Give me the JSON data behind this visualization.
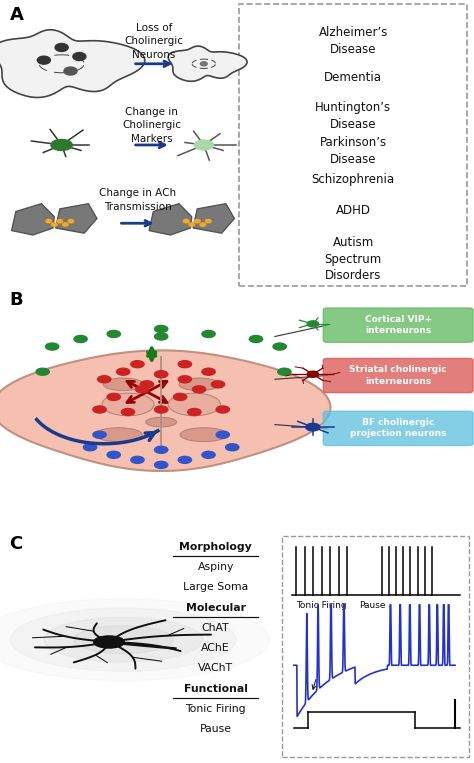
{
  "title_A": "A",
  "title_B": "B",
  "title_C": "C",
  "bg_color": "#ffffff",
  "diseases": [
    "Alzheimer’s\nDisease",
    "Dementia",
    "Huntington’s\nDisease",
    "Parkinson’s\nDisease",
    "Schizophrenia",
    "ADHD",
    "Autism\nSpectrum\nDisorders"
  ],
  "panel_A_labels": [
    "Loss of\nCholinergic\nNeurons",
    "Change in\nCholinergic\nMarkers",
    "Change in ACh\nTransmission"
  ],
  "legend_labels": [
    "Cortical VIP+\ninterneurons",
    "Striatal cholinergic\ninterneurons",
    "BF cholinergic\nprojection neurons"
  ],
  "legend_colors": [
    "#5cb85c",
    "#d9534f",
    "#5bc0de"
  ],
  "firing_label1": "Tonic Firing",
  "firing_label2": "Pause",
  "morph_lines": [
    "Morphology",
    "Aspiny",
    "Large Soma",
    "Molecular",
    "ChAT",
    "AChE",
    "VAChT",
    "Functional",
    "Tonic Firing",
    "Pause"
  ],
  "morph_underline": [
    true,
    false,
    false,
    true,
    false,
    false,
    false,
    true,
    false,
    false
  ]
}
